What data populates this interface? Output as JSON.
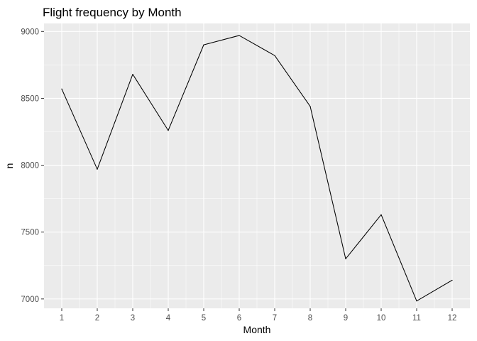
{
  "chart_data": {
    "type": "line",
    "title": "Flight frequency by Month",
    "xlabel": "Month",
    "ylabel": "n",
    "x": [
      1,
      2,
      3,
      4,
      5,
      6,
      7,
      8,
      9,
      10,
      11,
      12
    ],
    "series": [
      {
        "values": [
          8570,
          7970,
          8680,
          8260,
          8900,
          8970,
          8820,
          8440,
          7300,
          7630,
          6985,
          7140
        ],
        "color": "#000000"
      }
    ],
    "xticks": [
      1,
      2,
      3,
      4,
      5,
      6,
      7,
      8,
      9,
      10,
      11,
      12
    ],
    "yticks": [
      7000,
      7500,
      8000,
      8500,
      9000
    ],
    "xlim": [
      0.5,
      12.5
    ],
    "ylim": [
      6930,
      9060
    ],
    "grid": true,
    "legend": "none",
    "panel_background": "#ebebeb",
    "grid_color": "#ffffff"
  }
}
